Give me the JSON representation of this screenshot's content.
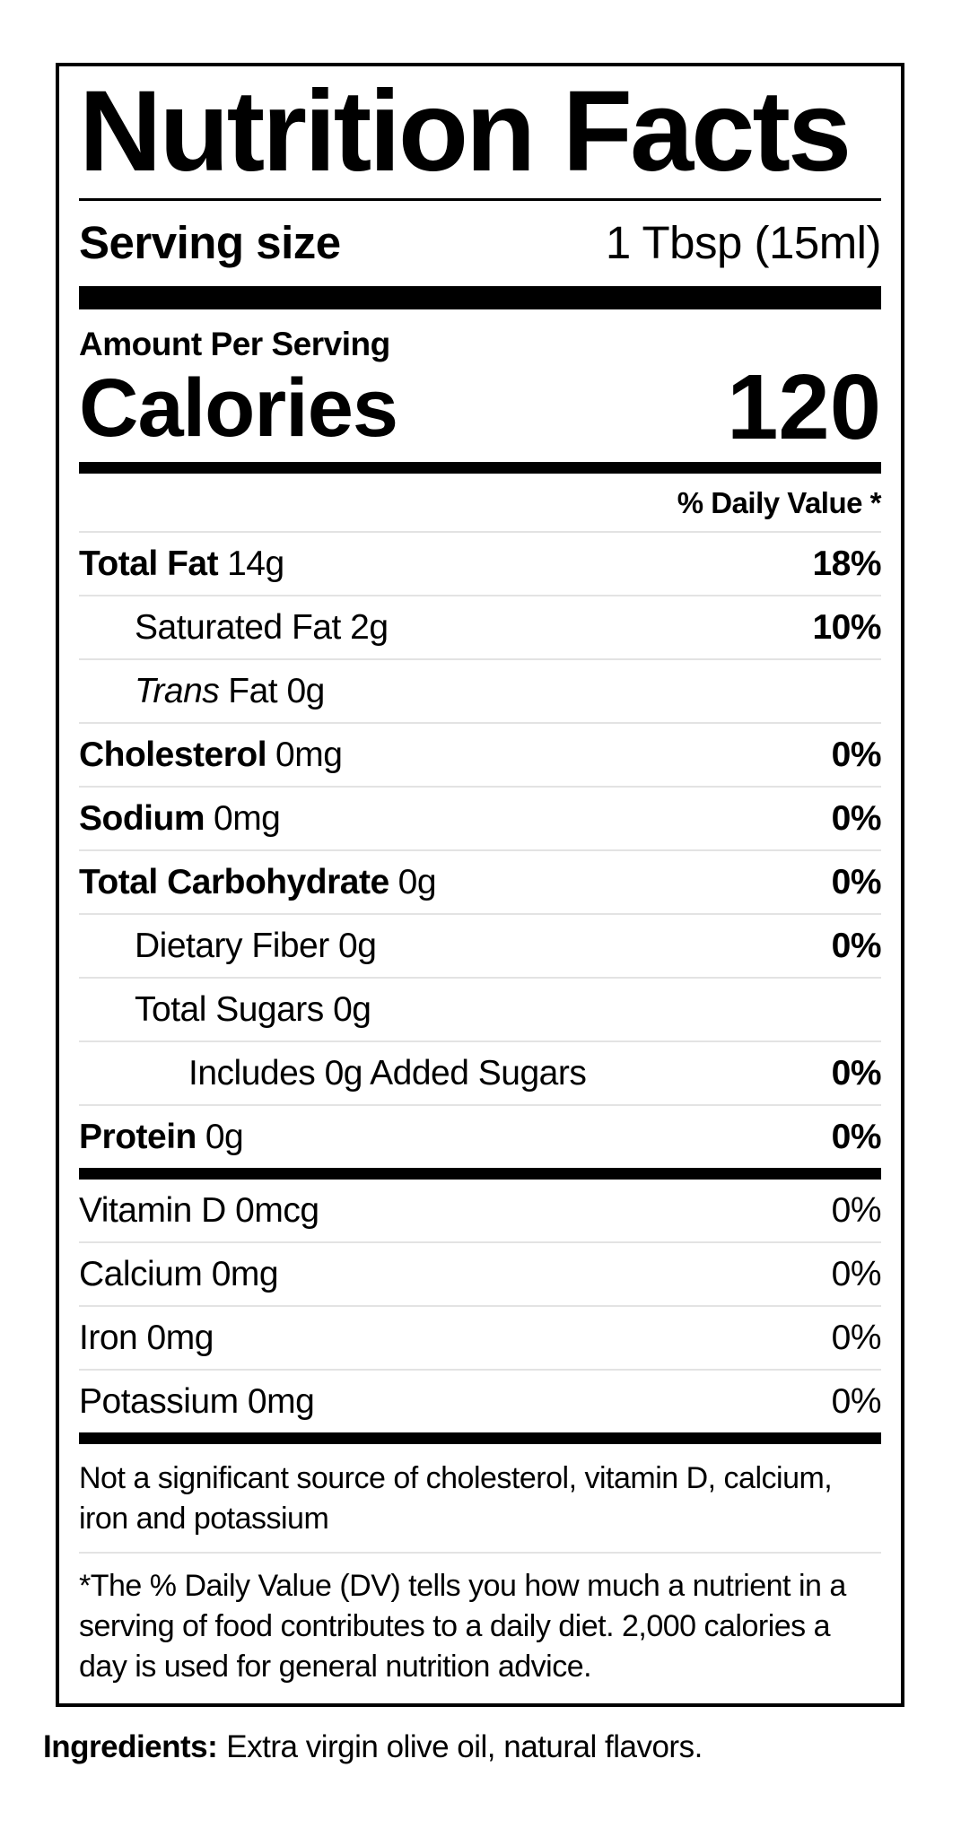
{
  "colors": {
    "text": "#000000",
    "divider": "#e3e3e3",
    "background": "#ffffff"
  },
  "label": {
    "title": "Nutrition Facts",
    "serving": {
      "label": "Serving size",
      "value": "1 Tbsp (15ml)"
    },
    "amount_per_serving": "Amount Per Serving",
    "calories": {
      "label": "Calories",
      "value": "120"
    },
    "daily_value_header": "% Daily Value *",
    "nutrients": [
      {
        "bold": "Total Fat",
        "text": "14g",
        "dv": "18%"
      },
      {
        "text": "Saturated Fat 2g",
        "dv": "10%"
      },
      {
        "italic": "Trans",
        "text": "Fat 0g",
        "dv": ""
      },
      {
        "bold": "Cholesterol",
        "text": "0mg",
        "dv": "0%"
      },
      {
        "bold": "Sodium",
        "text": "0mg",
        "dv": "0%"
      },
      {
        "bold": "Total Carbohydrate",
        "text": "0g",
        "dv": "0%"
      },
      {
        "text": "Dietary Fiber 0g",
        "dv": "0%"
      },
      {
        "text": "Total Sugars 0g",
        "dv": ""
      },
      {
        "text": "Includes 0g Added Sugars",
        "dv": "0%"
      },
      {
        "bold": "Protein",
        "text": "0g",
        "dv": "0%"
      }
    ],
    "vitamins": [
      {
        "text": "Vitamin D 0mcg",
        "dv": "0%"
      },
      {
        "text": "Calcium 0mg",
        "dv": "0%"
      },
      {
        "text": "Iron 0mg",
        "dv": "0%"
      },
      {
        "text": "Potassium 0mg",
        "dv": "0%"
      }
    ],
    "not_significant_note": "Not a significant source of cholesterol, vitamin D, calcium, iron and potassium",
    "dv_footnote": "*The % Daily Value (DV) tells you how much a nutrient in a serving of food contributes to a daily diet. 2,000 calories a day is used for general nutrition advice."
  },
  "ingredients": {
    "label": "Ingredients:",
    "value": "Extra virgin olive oil, natural flavors."
  }
}
